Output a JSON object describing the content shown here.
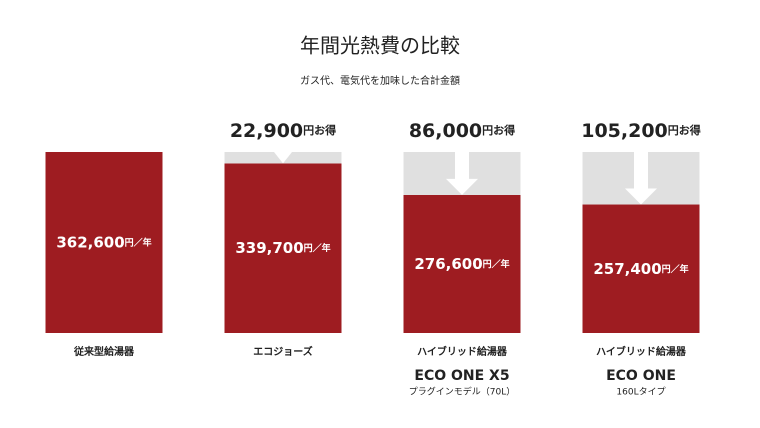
{
  "chart_data": {
    "type": "bar",
    "title": "年間光熱費の比較",
    "subtitle": "ガス代、電気代を加味した合計金額",
    "categories": [
      "従来型給湯器",
      "エコジョーズ",
      "ハイブリッド給湯器",
      "ハイブリッド給湯器"
    ],
    "products": [
      null,
      null,
      "ECO ONE X5",
      "ECO ONE"
    ],
    "notes": [
      null,
      null,
      "プラグインモデル（70L）",
      "160Lタイプ"
    ],
    "values": [
      362600,
      339700,
      276600,
      257400
    ],
    "value_labels": [
      "362,600円／年",
      "339,700円／年",
      "276,600円／年",
      "257,400円／年"
    ],
    "savings": [
      null,
      22900,
      86000,
      105200
    ],
    "savings_labels": [
      null,
      "22,900円お得",
      "86,000円お得",
      "105,200円お得"
    ],
    "color": "#9e1c21",
    "savings_color": "#e0e0e0",
    "ylim": [
      0,
      362600
    ]
  }
}
